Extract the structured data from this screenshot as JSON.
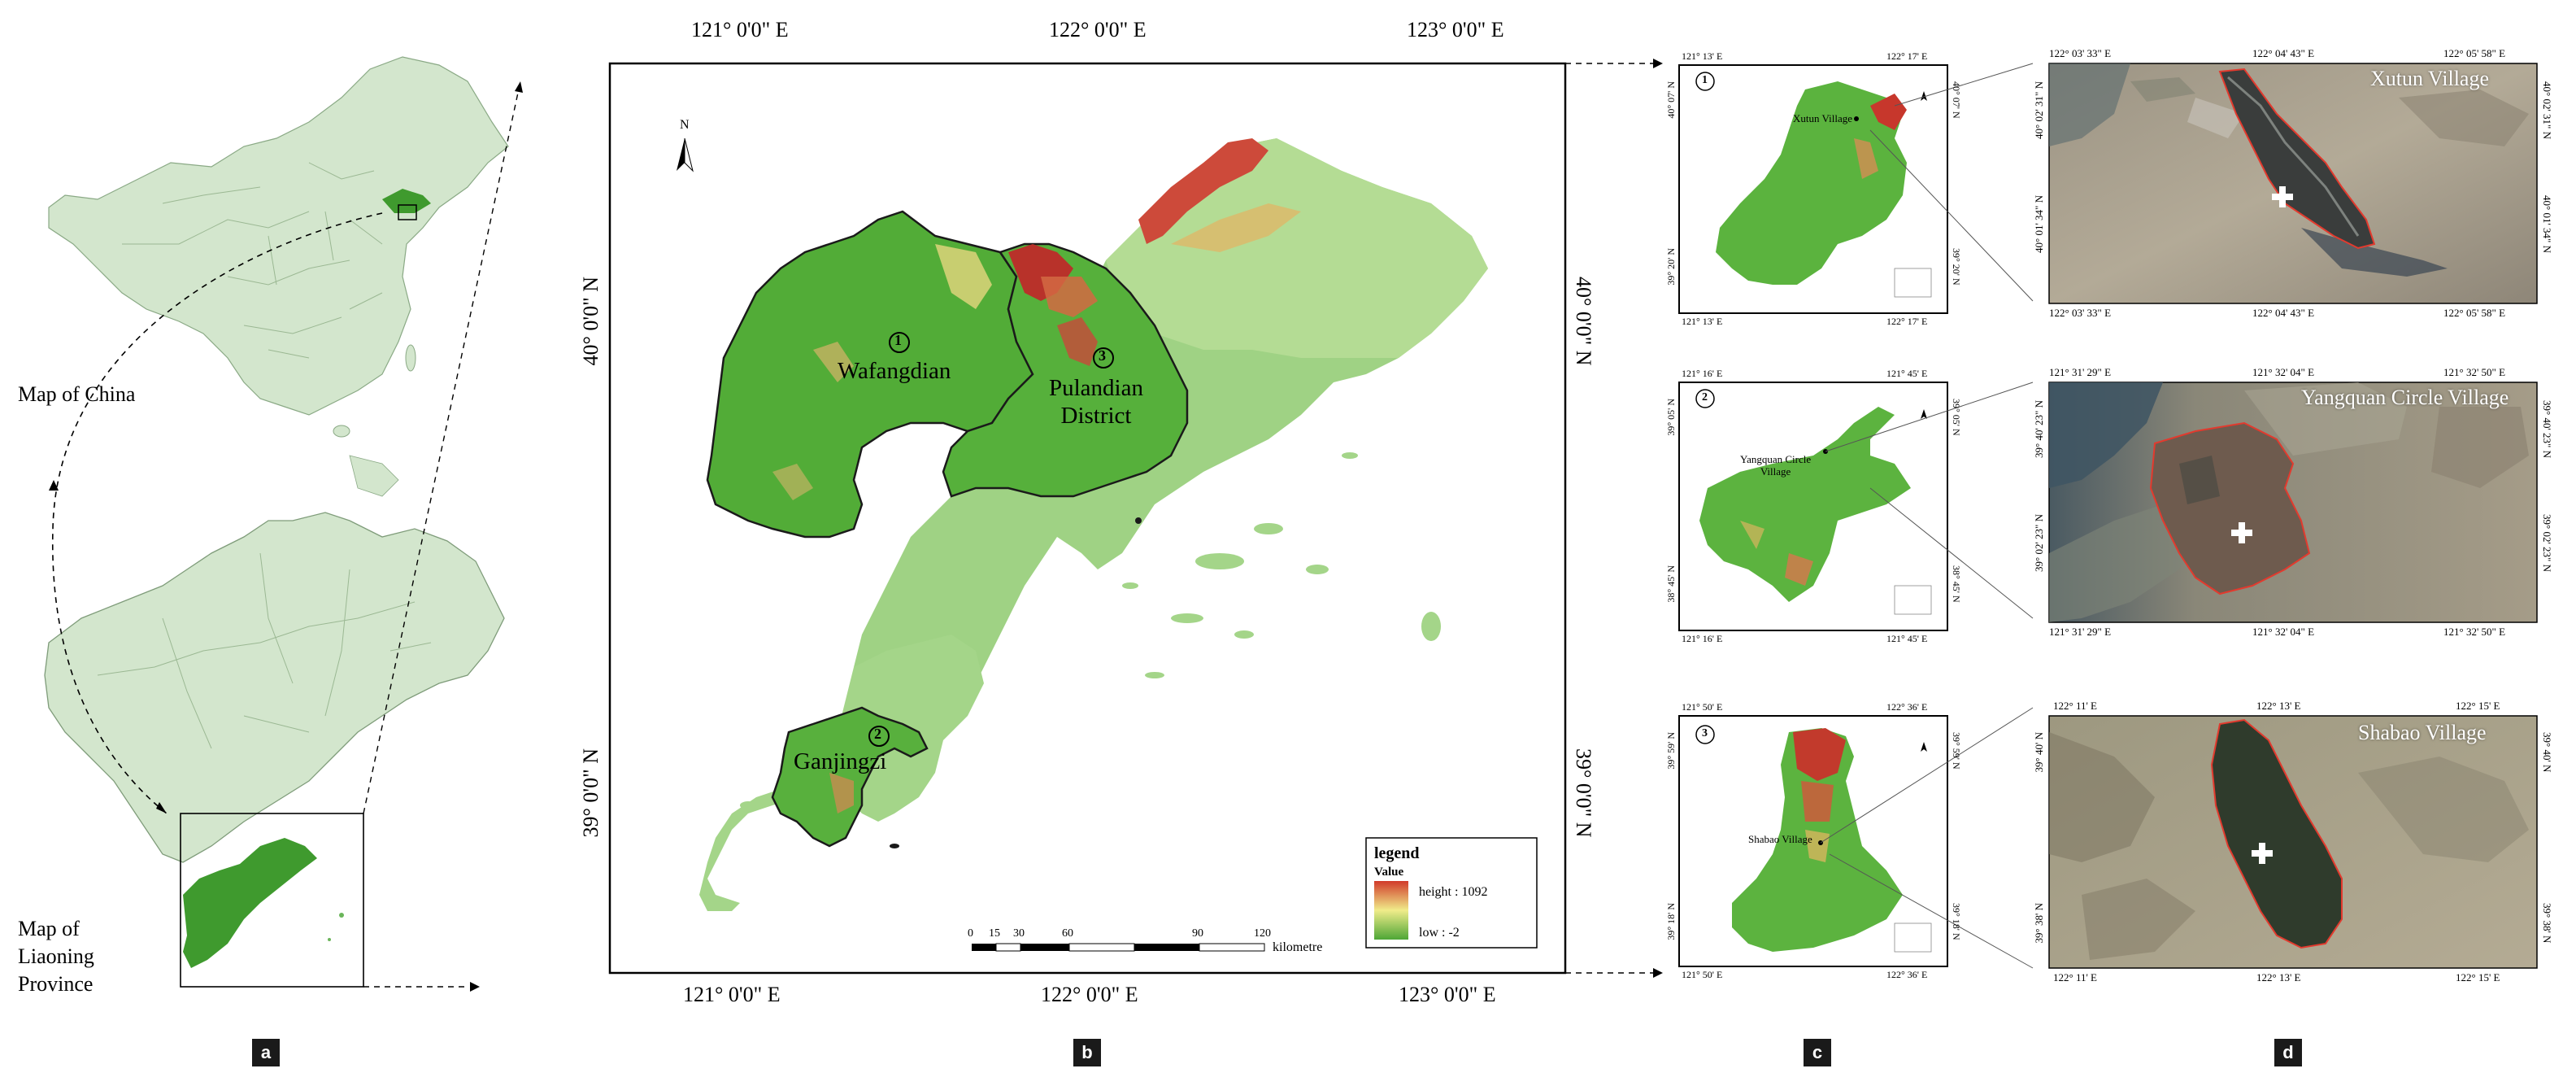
{
  "panel_a": {
    "label": "a",
    "china_caption": "Map of China",
    "liaoning_caption_line1": "Map of",
    "liaoning_caption_line2": "Liaoning",
    "liaoning_caption_line3": "Province"
  },
  "panel_b": {
    "label": "b",
    "top_ticks": [
      "121° 0'0\" E",
      "122° 0'0\" E",
      "123° 0'0\" E"
    ],
    "bottom_ticks": [
      "121° 0'0\" E",
      "122° 0'0\" E",
      "123° 0'0\" E"
    ],
    "left_ticks": [
      "40° 0'0\" N",
      "39° 0'0\" N"
    ],
    "right_ticks": [
      "40° 0'0\" N",
      "39° 0'0\" N"
    ],
    "north": "N",
    "districts": [
      {
        "num": "①",
        "name": "Wafangdian"
      },
      {
        "num": "③",
        "name_line1": "Pulandian",
        "name_line2": "District"
      },
      {
        "num": "②",
        "name": "Ganjingzi"
      }
    ],
    "legend": {
      "title": "legend",
      "value_label": "Value",
      "high": "height : 1092",
      "low": "low : -2"
    },
    "scale": {
      "ticks": [
        "0",
        "15",
        "30",
        "60",
        "90",
        "120"
      ],
      "unit": "kilometre"
    }
  },
  "panel_c": {
    "label": "c",
    "maps": [
      {
        "num": "①",
        "top_left": "121° 13' E",
        "top_right": "122° 17' E",
        "bottom_left": "121° 13' E",
        "bottom_right": "122° 17' E",
        "left_top": "40° 07' N",
        "left_bottom": "39° 20' N",
        "right_top": "40° 07' N",
        "right_bottom": "39° 20' N",
        "village": "Xutun Village"
      },
      {
        "num": "②",
        "top_left": "121° 16' E",
        "top_right": "121° 45' E",
        "bottom_left": "121° 16' E",
        "bottom_right": "121° 45' E",
        "left_top": "39° 05' N",
        "left_bottom": "38° 45' N",
        "right_top": "39° 05' N",
        "right_bottom": "38° 45' N",
        "village_line1": "Yangquan Circle",
        "village_line2": "Village"
      },
      {
        "num": "③",
        "top_left": "121° 50' E",
        "top_right": "122° 36' E",
        "bottom_left": "121° 50' E",
        "bottom_right": "122° 36' E",
        "left_top": "39° 59' N",
        "left_bottom": "39° 18' N",
        "right_top": "39° 59' N",
        "right_bottom": "39° 18' N",
        "village": "Shabao Village"
      }
    ]
  },
  "panel_d": {
    "label": "d",
    "photos": [
      {
        "title": "Xutun Village",
        "top": [
          "122° 03' 33\" E",
          "122° 04' 43\" E",
          "122° 05' 58\" E"
        ],
        "bottom": [
          "122° 03' 33\" E",
          "122° 04' 43\" E",
          "122° 05' 58\" E"
        ],
        "left": [
          "40° 02' 31\" N",
          "40° 01' 34\" N"
        ],
        "right": [
          "40° 02' 31\" N",
          "40° 01' 34\" N"
        ]
      },
      {
        "title": "Yangquan Circle Village",
        "top": [
          "121° 31' 29\" E",
          "121° 32' 04\" E",
          "121° 32' 50\" E"
        ],
        "bottom": [
          "121° 31' 29\" E",
          "121° 32' 04\" E",
          "121° 32' 50\" E"
        ],
        "left": [
          "39° 40' 23\" N",
          "39° 02' 23\" N"
        ],
        "right": [
          "39° 40' 23\" N",
          "39° 02' 23\" N"
        ]
      },
      {
        "title": "Shabao Village",
        "top": [
          "122° 11' E",
          "122° 13' E",
          "122° 15' E"
        ],
        "bottom": [
          "122° 11' E",
          "122° 13' E",
          "122° 15' E"
        ],
        "left": [
          "39° 40' N",
          "39° 38' N"
        ],
        "right": [
          "39° 40' N",
          "39° 38' N"
        ]
      }
    ]
  },
  "colors": {
    "land_pale": "#d4e8cf",
    "green": "#4a9e3a",
    "relief_high": "#c8302a",
    "relief_mid": "#e6e07a",
    "relief_low": "#58b13d"
  }
}
